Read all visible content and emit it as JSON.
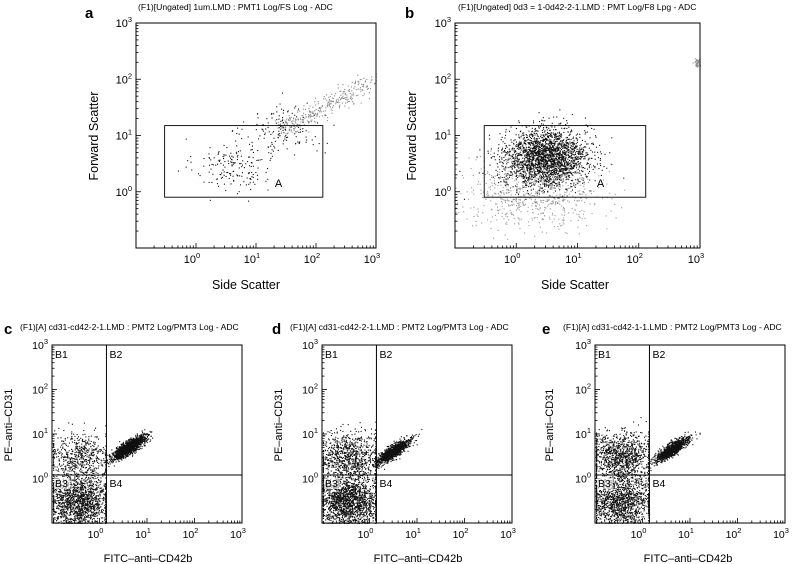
{
  "figure": {
    "panel_letters": [
      "a",
      "b",
      "c",
      "d",
      "e"
    ]
  },
  "chart_data": [
    {
      "panel": "a",
      "type": "scatter",
      "title": "(F1)[Ungated] 1um.LMD : PMT1 Log/FS Log - ADC",
      "xlabel": "Side Scatter",
      "ylabel": "Forward Scatter",
      "x_scale": "log",
      "y_scale": "log",
      "xlim": [
        0.1,
        1000
      ],
      "ylim": [
        0.1,
        1000
      ],
      "x_ticks": [
        "10^0",
        "10^1",
        "10^2",
        "10^3"
      ],
      "y_ticks": [
        "10^0",
        "10^1",
        "10^2",
        "10^3"
      ],
      "gate": {
        "label": "A",
        "x_range": [
          0.3,
          130
        ],
        "y_range": [
          0.8,
          15
        ]
      },
      "populations": [
        {
          "name": "",
          "x_center": 4,
          "y_center": 3,
          "n_events": 170,
          "color": "#111111"
        },
        {
          "name": "",
          "x_center": 30,
          "y_center": 13,
          "n_events": 140,
          "color": "#111111"
        },
        {
          "name": "",
          "x_center": 150,
          "y_center": 50,
          "n_events": 320,
          "color": "#8a8a8a"
        }
      ],
      "grid": false
    },
    {
      "panel": "b",
      "type": "scatter",
      "title": "(F1)[Ungated] 0d3 = 1-0d42-2-1.LMD : PMT Log/F8 Lpg - ADC",
      "xlabel": "Side Scatter",
      "ylabel": "Forward Scatter",
      "x_scale": "log",
      "y_scale": "log",
      "xlim": [
        0.1,
        1000
      ],
      "ylim": [
        0.1,
        1000
      ],
      "x_ticks": [
        "10^0",
        "10^1",
        "10^2",
        "10^3"
      ],
      "y_ticks": [
        "10^0",
        "10^1",
        "10^2",
        "10^3"
      ],
      "gate": {
        "label": "A",
        "x_range": [
          0.3,
          130
        ],
        "y_range": [
          0.8,
          15
        ]
      },
      "populations": [
        {
          "name": "",
          "x_center": 3,
          "y_center": 4,
          "n_events": 2400,
          "color": "#111111"
        },
        {
          "name": "",
          "x_center": 2,
          "y_center": 1,
          "n_events": 700,
          "color": "#9a9a9a"
        },
        {
          "name": "",
          "x_center": 900,
          "y_center": 200,
          "n_events": 40,
          "color": "#8a8a8a"
        }
      ],
      "grid": false
    },
    {
      "panel": "c",
      "type": "scatter",
      "title": "(F1)[A] cd31-cd42-2-1.LMD : PMT2 Log/PMT3 Log - ADC",
      "xlabel": "FITC–anti–CD42b",
      "ylabel": "PE–anti–CD31",
      "x_scale": "log",
      "y_scale": "log",
      "xlim": [
        0.1,
        1000
      ],
      "ylim": [
        0.1,
        1000
      ],
      "x_ticks": [
        "10^0",
        "10^1",
        "10^2",
        "10^3"
      ],
      "y_ticks": [
        "10^0",
        "10^1",
        "10^2",
        "10^3"
      ],
      "quadrant_lines": {
        "x": 1.4,
        "y": 1.2
      },
      "quadrant_labels": [
        "B1",
        "B2",
        "B3",
        "B4"
      ],
      "populations": [
        {
          "name": "",
          "x_center": 4,
          "y_center": 5,
          "n_events": 1600,
          "color": "#111111"
        },
        {
          "name": "",
          "x_center": 0.35,
          "y_center": 0.3,
          "n_events": 1500,
          "color": "#111111"
        },
        {
          "name": "",
          "x_center": 0.35,
          "y_center": 3,
          "n_events": 600,
          "color": "#111111"
        }
      ],
      "grid": false
    },
    {
      "panel": "d",
      "type": "scatter",
      "title": "(F1)[A] cd31-cd42-2-1.LMD : PMT2 Log/PMT3 Log - ADC",
      "xlabel": "FITC–anti–CD42b",
      "ylabel": "PE–anti–CD31",
      "x_scale": "log",
      "y_scale": "log",
      "xlim": [
        0.1,
        1000
      ],
      "ylim": [
        0.1,
        1000
      ],
      "x_ticks": [
        "10^0",
        "10^1",
        "10^2",
        "10^3"
      ],
      "y_ticks": [
        "10^0",
        "10^1",
        "10^2",
        "10^3"
      ],
      "quadrant_lines": {
        "x": 1.4,
        "y": 1.2
      },
      "quadrant_labels": [
        "B1",
        "B2",
        "B3",
        "B4"
      ],
      "populations": [
        {
          "name": "",
          "x_center": 3,
          "y_center": 4,
          "n_events": 1300,
          "color": "#111111"
        },
        {
          "name": "",
          "x_center": 0.35,
          "y_center": 0.3,
          "n_events": 1700,
          "color": "#111111"
        },
        {
          "name": "",
          "x_center": 0.35,
          "y_center": 3,
          "n_events": 900,
          "color": "#111111"
        }
      ],
      "grid": false
    },
    {
      "panel": "e",
      "type": "scatter",
      "title": "(F1)[A] cd31-cd42-1-1.LMD : PMT2 Log/PMT3 Log - ADC",
      "xlabel": "FITC–anti–CD42b",
      "ylabel": "PE–anti–CD31",
      "x_scale": "log",
      "y_scale": "log",
      "xlim": [
        0.1,
        1000
      ],
      "ylim": [
        0.1,
        1000
      ],
      "x_ticks": [
        "10^0",
        "10^1",
        "10^2",
        "10^3"
      ],
      "y_ticks": [
        "10^0",
        "10^1",
        "10^2",
        "10^3"
      ],
      "quadrant_lines": {
        "x": 1.4,
        "y": 1.2
      },
      "quadrant_labels": [
        "B1",
        "B2",
        "B3",
        "B4"
      ],
      "populations": [
        {
          "name": "",
          "x_center": 4,
          "y_center": 4.5,
          "n_events": 1200,
          "color": "#111111"
        },
        {
          "name": "",
          "x_center": 0.35,
          "y_center": 0.3,
          "n_events": 1300,
          "color": "#111111"
        },
        {
          "name": "",
          "x_center": 0.35,
          "y_center": 3,
          "n_events": 1100,
          "color": "#111111"
        }
      ],
      "grid": false
    }
  ]
}
